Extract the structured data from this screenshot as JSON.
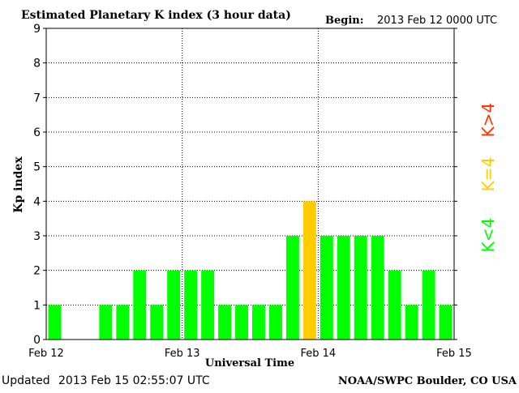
{
  "chart_data": {
    "type": "bar",
    "title": "Estimated Planetary K index (3 hour data)",
    "begin_label": "Begin:",
    "begin_value": "2013 Feb 12 0000 UTC",
    "xlabel": "Universal Time",
    "ylabel": "Kp index",
    "ylim": [
      0,
      9
    ],
    "yticks": [
      "0",
      "1",
      "2",
      "3",
      "4",
      "5",
      "6",
      "7",
      "8",
      "9"
    ],
    "xticks": [
      "Feb 12",
      "Feb 13",
      "Feb 14",
      "Feb 15"
    ],
    "grid": true,
    "bar_count": 24,
    "values": [
      1,
      0,
      0,
      1,
      1,
      2,
      1,
      2,
      2,
      2,
      1,
      1,
      1,
      1,
      3,
      4,
      3,
      3,
      3,
      3,
      2,
      1,
      2,
      1
    ],
    "colors": {
      "below_4": "#00ff00",
      "equal_4": "#ffcc00",
      "above_4": "#ff3300",
      "axis": "#000000",
      "grid": "#000000"
    },
    "legend": {
      "below": "K<4",
      "equal": "K=4",
      "above": "K>4"
    }
  },
  "footer": {
    "updated_label": "Updated",
    "updated_value": "2013 Feb 15 02:55:07 UTC",
    "source": "NOAA/SWPC Boulder, CO USA"
  }
}
